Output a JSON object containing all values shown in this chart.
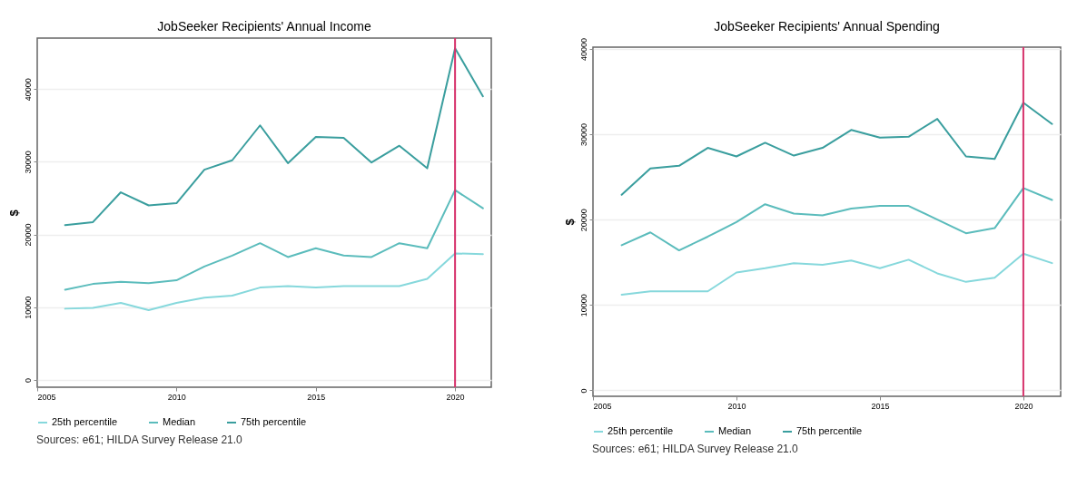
{
  "chart_data": [
    {
      "type": "line",
      "title": "JobSeeker Recipients' Annual Income",
      "ylabel": "$",
      "x": [
        2006,
        2007,
        2008,
        2009,
        2010,
        2011,
        2012,
        2013,
        2014,
        2015,
        2016,
        2017,
        2018,
        2019,
        2020,
        2021
      ],
      "series": [
        {
          "name": "25th percentile",
          "color": "#86d8dc",
          "values": [
            9800,
            9900,
            10600,
            9600,
            10600,
            11300,
            11600,
            12700,
            12900,
            12700,
            12900,
            12900,
            12900,
            13900,
            17400,
            17300
          ]
        },
        {
          "name": "Median",
          "color": "#5bbcbc",
          "values": [
            12400,
            13200,
            13500,
            13300,
            13700,
            15600,
            17100,
            18800,
            16900,
            18100,
            17100,
            16900,
            18800,
            18100,
            26100,
            23600
          ]
        },
        {
          "name": "75th percentile",
          "color": "#3a9e9e",
          "values": [
            21300,
            21700,
            25800,
            24000,
            24300,
            28900,
            30200,
            35000,
            29800,
            33400,
            33300,
            29900,
            32200,
            29100,
            45600,
            39000
          ]
        }
      ],
      "xlim": [
        2005,
        2021.3
      ],
      "xticks": [
        2005,
        2010,
        2015,
        2020
      ],
      "ylim": [
        -1000,
        47000
      ],
      "yticks": [
        0,
        10000,
        20000,
        30000,
        40000
      ],
      "grid": "y",
      "legend": "bottom",
      "line_style": "solid",
      "ref_lines": [
        {
          "axis": "x",
          "value": 2020,
          "color": "#d6336c"
        }
      ],
      "annotations": [
        "Sources: e61; HILDA Survey Release 21.0"
      ]
    },
    {
      "type": "line",
      "title": "JobSeeker Recipients' Annual Spending",
      "ylabel": "$",
      "x": [
        2006,
        2007,
        2008,
        2009,
        2010,
        2011,
        2012,
        2013,
        2014,
        2015,
        2016,
        2017,
        2018,
        2019,
        2020,
        2021
      ],
      "series": [
        {
          "name": "25th percentile",
          "color": "#86d8dc",
          "values": [
            11200,
            11600,
            11600,
            11600,
            13800,
            14300,
            14900,
            14700,
            15200,
            14300,
            15300,
            13700,
            12700,
            13200,
            16000,
            14900
          ]
        },
        {
          "name": "Median",
          "color": "#5bbcbc",
          "values": [
            17000,
            18500,
            16400,
            18000,
            19700,
            21800,
            20700,
            20500,
            21300,
            21600,
            21600,
            20000,
            18400,
            19000,
            23700,
            22300
          ]
        },
        {
          "name": "75th percentile",
          "color": "#3a9e9e",
          "values": [
            22900,
            26000,
            26300,
            28400,
            27400,
            29000,
            27500,
            28400,
            30500,
            29600,
            29700,
            31800,
            27400,
            27100,
            33700,
            31200
          ]
        }
      ],
      "xlim": [
        2005,
        2021.3
      ],
      "xticks": [
        2005,
        2010,
        2015,
        2020
      ],
      "ylim": [
        -700,
        40200
      ],
      "yticks": [
        0,
        10000,
        20000,
        30000,
        40000
      ],
      "grid": "y",
      "legend": "bottom",
      "line_style": "solid",
      "ref_lines": [
        {
          "axis": "x",
          "value": 2020,
          "color": "#d6336c"
        }
      ],
      "annotations": [
        "Sources: e61; HILDA Survey Release 21.0"
      ]
    }
  ]
}
